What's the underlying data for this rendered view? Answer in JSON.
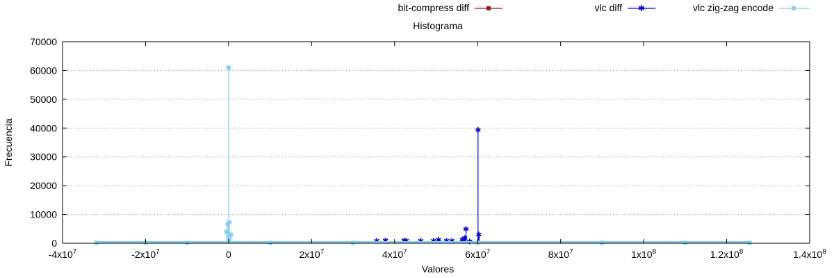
{
  "chart_data": {
    "type": "line",
    "title": "Histograma",
    "xlabel": "Valores",
    "ylabel": "Frecuencia",
    "xlim": [
      -40000000,
      140000000
    ],
    "ylim": [
      0,
      70000
    ],
    "grid": true,
    "legend_position": "top",
    "x_ticks": [
      {
        "value": -40000000,
        "mant": "-4x10",
        "exp": "7"
      },
      {
        "value": -20000000,
        "mant": "-2x10",
        "exp": "7"
      },
      {
        "value": 0,
        "mant": "0",
        "exp": ""
      },
      {
        "value": 20000000,
        "mant": "2x10",
        "exp": "7"
      },
      {
        "value": 40000000,
        "mant": "4x10",
        "exp": "7"
      },
      {
        "value": 60000000,
        "mant": "6x10",
        "exp": "7"
      },
      {
        "value": 80000000,
        "mant": "8x10",
        "exp": "7"
      },
      {
        "value": 100000000,
        "mant": "1x10",
        "exp": "8"
      },
      {
        "value": 120000000,
        "mant": "1.2x10",
        "exp": "8"
      },
      {
        "value": 140000000,
        "mant": "1.4x10",
        "exp": "8"
      }
    ],
    "y_ticks": [
      0,
      10000,
      20000,
      30000,
      40000,
      50000,
      60000,
      70000
    ],
    "series": [
      {
        "name": "bit-compress diff",
        "color": "#8b1a1a",
        "marker": "square",
        "x": [],
        "y": []
      },
      {
        "name": "vlc diff",
        "color": "#0000cc",
        "marker": "star",
        "x": [
          35700000,
          37800000,
          42300000,
          42800000,
          46300000,
          49400000,
          50600000,
          52500000,
          53800000,
          56300000,
          56900000,
          57200000,
          58100000,
          60100000,
          60300000
        ],
        "y": [
          900,
          1000,
          1000,
          900,
          900,
          900,
          1200,
          800,
          900,
          1200,
          1800,
          5000,
          600,
          39300,
          3000
        ]
      },
      {
        "name": "vlc zig-zag encode",
        "color": "#87ceeb",
        "marker": "square",
        "x": [
          -31800000,
          -20000000,
          -10000000,
          -500000,
          -200000,
          0,
          200000,
          500000,
          10000000,
          30000000,
          60000000,
          90000000,
          110000000,
          125500000
        ],
        "y": [
          200,
          200,
          200,
          4000,
          6500,
          61000,
          7200,
          3000,
          200,
          200,
          200,
          200,
          200,
          200
        ]
      }
    ]
  }
}
